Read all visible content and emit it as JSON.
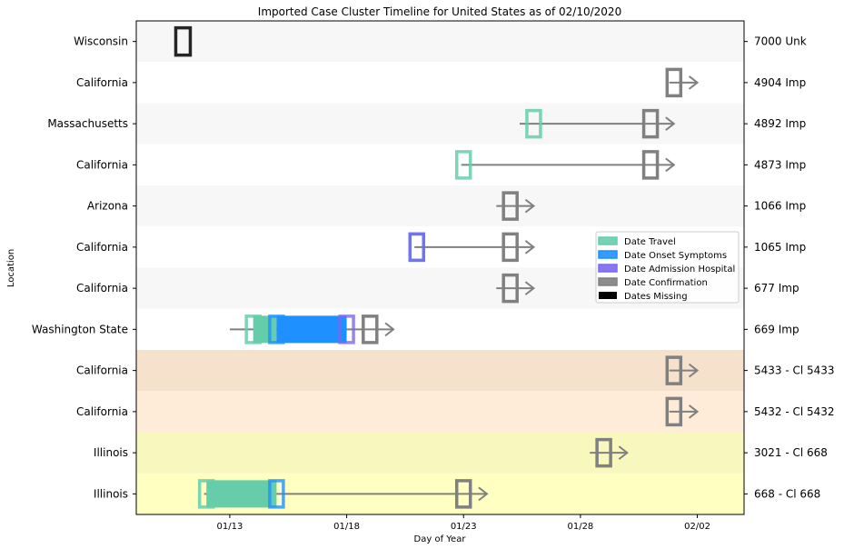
{
  "chart_data": {
    "type": "timeline",
    "title": "Imported Case Cluster Timeline for United States as of 02/10/2020",
    "xlabel": "Day of Year",
    "ylabel": "Location",
    "x_ticks": [
      {
        "label": "01/13",
        "day": 13
      },
      {
        "label": "01/18",
        "day": 18
      },
      {
        "label": "01/23",
        "day": 23
      },
      {
        "label": "01/28",
        "day": 28
      },
      {
        "label": "02/02",
        "day": 33
      }
    ],
    "xlim": [
      9.0,
      35.0
    ],
    "colors": {
      "travel": "#66cdaa",
      "onset": "#1e90ff",
      "admission": "#7b68ee",
      "confirmation": "#808080",
      "missing": "#000000",
      "line": "#808080"
    },
    "legend": {
      "placement": "center-right",
      "items": [
        {
          "label": "Date Travel",
          "key": "travel"
        },
        {
          "label": "Date Onset Symptoms",
          "key": "onset"
        },
        {
          "label": "Date Admission Hospital",
          "key": "admission"
        },
        {
          "label": "Date Confirmation",
          "key": "confirmation"
        },
        {
          "label": "Dates Missing",
          "key": "missing"
        }
      ]
    },
    "rows": [
      {
        "location": "Wisconsin",
        "case": "7000 Unk",
        "band": "#f7f7f7",
        "line": null,
        "fill": null,
        "markers": [
          {
            "type": "missing",
            "day": 11.0
          }
        ]
      },
      {
        "location": "California",
        "case": "4904 Imp",
        "band": "#ffffff",
        "line": [
          31.8,
          33.0
        ],
        "fill": null,
        "markers": [
          {
            "type": "confirmation",
            "day": 32.0
          }
        ]
      },
      {
        "location": "Massachusetts",
        "case": "4892 Imp",
        "band": "#f7f7f7",
        "line": [
          25.4,
          32.0
        ],
        "fill": null,
        "markers": [
          {
            "type": "travel",
            "day": 26.0
          },
          {
            "type": "confirmation",
            "day": 31.0
          }
        ]
      },
      {
        "location": "California",
        "case": "4873 Imp",
        "band": "#ffffff",
        "line": [
          22.9,
          32.0
        ],
        "fill": null,
        "markers": [
          {
            "type": "travel",
            "day": 23.0
          },
          {
            "type": "confirmation",
            "day": 31.0
          }
        ]
      },
      {
        "location": "Arizona",
        "case": "1066 Imp",
        "band": "#f7f7f7",
        "line": [
          24.4,
          26.0
        ],
        "fill": null,
        "markers": [
          {
            "type": "confirmation",
            "day": 25.0
          }
        ]
      },
      {
        "location": "California",
        "case": "1065 Imp",
        "band": "#ffffff",
        "line": [
          20.9,
          26.0
        ],
        "fill": null,
        "markers": [
          {
            "type": "onset",
            "day": 21.0
          },
          {
            "type": "admission",
            "day": 21.0
          },
          {
            "type": "confirmation",
            "day": 25.0
          }
        ]
      },
      {
        "location": "California",
        "case": "677 Imp",
        "band": "#f7f7f7",
        "line": [
          24.4,
          26.0
        ],
        "fill": null,
        "markers": [
          {
            "type": "confirmation",
            "day": 25.0
          }
        ]
      },
      {
        "location": "Washington State",
        "case": "669 Imp",
        "band": "#ffffff",
        "line": [
          13.0,
          20.0
        ],
        "fill": [
          {
            "type": "travel",
            "from": 14.0,
            "to": 15.0
          },
          {
            "type": "onset",
            "from": 15.0,
            "to": 18.0
          }
        ],
        "markers": [
          {
            "type": "travel",
            "day": 14.0
          },
          {
            "type": "onset",
            "day": 15.0
          },
          {
            "type": "admission",
            "day": 18.0
          },
          {
            "type": "confirmation",
            "day": 19.0
          }
        ]
      },
      {
        "location": "California",
        "case": "5433 - Cl 5433",
        "band": "#f5e1cc",
        "line": [
          31.8,
          33.0
        ],
        "fill": null,
        "markers": [
          {
            "type": "confirmation",
            "day": 32.0
          }
        ]
      },
      {
        "location": "California",
        "case": "5432 - Cl 5432",
        "band": "#feebd8",
        "line": [
          31.8,
          33.0
        ],
        "fill": null,
        "markers": [
          {
            "type": "confirmation",
            "day": 32.0
          }
        ]
      },
      {
        "location": "Illinois",
        "case": "3021 - Cl 668",
        "band": "#f8f8be",
        "line": [
          28.4,
          30.0
        ],
        "fill": null,
        "markers": [
          {
            "type": "confirmation",
            "day": 29.0
          }
        ]
      },
      {
        "location": "Illinois",
        "case": "668 - Cl 668",
        "band": "#ffffc2",
        "line": [
          11.9,
          24.0
        ],
        "fill": [
          {
            "type": "travel",
            "from": 12.0,
            "to": 15.0
          }
        ],
        "markers": [
          {
            "type": "travel",
            "day": 12.0
          },
          {
            "type": "onset",
            "day": 15.0
          },
          {
            "type": "confirmation",
            "day": 23.0
          }
        ]
      }
    ]
  }
}
